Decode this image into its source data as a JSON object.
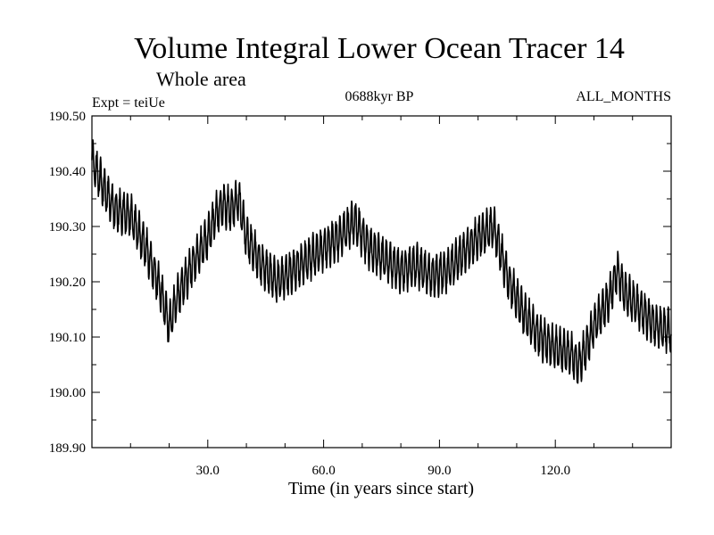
{
  "chart_data": {
    "type": "line",
    "title": "Volume Integral Lower Ocean Tracer 14",
    "subtitle": "Whole area",
    "experiment": "Expt = teiUe",
    "period": "0688kyr BP",
    "season": "ALL_MONTHS",
    "xlabel": "Time (in years since start)",
    "ylabel": "",
    "xlim": [
      0,
      150
    ],
    "ylim": [
      189.9,
      190.5
    ],
    "x_ticks": [
      30,
      60,
      90,
      120
    ],
    "x_tick_labels": [
      "30.0",
      "60.0",
      "90.0",
      "120.0"
    ],
    "x_minor_step": 10,
    "y_ticks": [
      189.9,
      190.0,
      190.1,
      190.2,
      190.3,
      190.4,
      190.5
    ],
    "y_tick_labels": [
      "189.90",
      "190.00",
      "190.10",
      "190.20",
      "190.30",
      "190.40",
      "190.50"
    ],
    "y_minor_step": 0.05,
    "grid": false,
    "line_color": "#000000",
    "series": [
      {
        "name": "Volume Integral Lower Ocean Tracer 14",
        "samples_per_year": 12,
        "seasonal_amplitude": 0.035,
        "noise_amplitude": 0.008,
        "trend_x": [
          0,
          3,
          6,
          10,
          14,
          18,
          20,
          22,
          26,
          30,
          32,
          34,
          36,
          38,
          40,
          44,
          48,
          52,
          56,
          60,
          64,
          68,
          72,
          76,
          80,
          84,
          88,
          92,
          96,
          100,
          104,
          108,
          112,
          116,
          120,
          124,
          126,
          128,
          130,
          134,
          136,
          138,
          142,
          146,
          150
        ],
        "trend_y": [
          190.42,
          190.37,
          190.33,
          190.32,
          190.26,
          190.18,
          190.12,
          190.17,
          190.23,
          190.28,
          190.32,
          190.34,
          190.33,
          190.35,
          190.28,
          190.23,
          190.2,
          190.22,
          190.24,
          190.26,
          190.28,
          190.31,
          190.26,
          190.24,
          190.22,
          190.23,
          190.21,
          190.22,
          190.25,
          190.28,
          190.3,
          190.2,
          190.14,
          190.1,
          190.08,
          190.07,
          190.05,
          190.08,
          190.12,
          190.17,
          190.22,
          190.18,
          190.15,
          190.12,
          190.11
        ]
      }
    ]
  }
}
